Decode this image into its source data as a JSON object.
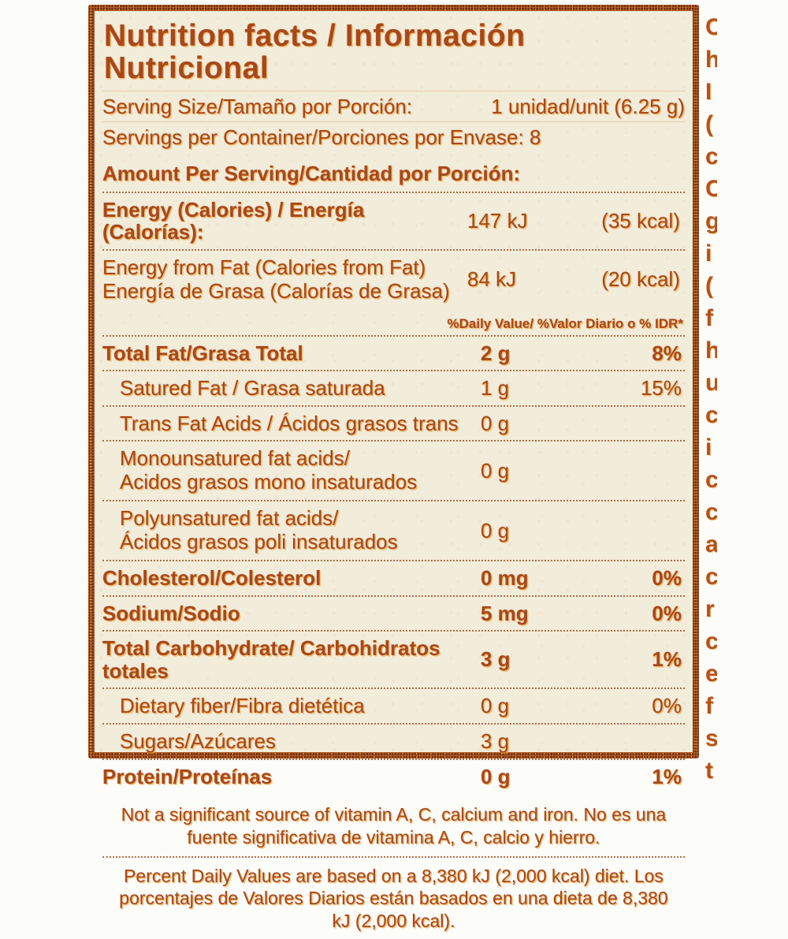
{
  "colors": {
    "ink": "#a8481a",
    "ink_dark": "#8a3510",
    "halo": "#f0a43c",
    "paper": "#f2ecda",
    "page_bg": "#fcfcf9",
    "border": "#7e3a14"
  },
  "label": {
    "title": "Nutrition facts / Información Nutricional",
    "serving": {
      "size_label": "Serving Size/Tamaño por Porción:",
      "size_value": "1 unidad/unit (6.25 g)",
      "per_container": "Servings per Container/Porciones por Envase: 8"
    },
    "amount_per_serving": "Amount Per Serving/Cantidad por Porción:",
    "energy": {
      "label": "Energy (Calories) / Energía (Calorías):",
      "value": "147 kJ",
      "kcal": "(35 kcal)"
    },
    "energy_from_fat": {
      "line1": "Energy from Fat (Calories from Fat)",
      "line2": "Energía de Grasa (Calorías de Grasa)",
      "value": "84 kJ",
      "kcal": "(20 kcal)"
    },
    "daily_value_header": "%Daily Value/ %Valor Diario o % IDR*",
    "nutrients": [
      {
        "name": "Total Fat/Grasa Total",
        "value": "2 g",
        "dv": "8%",
        "style": "bold"
      },
      {
        "name": "Satured Fat / Grasa saturada",
        "value": "1 g",
        "dv": "15%",
        "style": "indent"
      },
      {
        "name": "Trans Fat Acids / Ácidos grasos trans",
        "value": "0 g",
        "dv": "",
        "style": "indent"
      },
      {
        "name": "Monounsatured fat acids/",
        "name2": "Acidos grasos mono insaturados",
        "value": "0 g",
        "dv": "",
        "style": "indent"
      },
      {
        "name": "Polyunsatured fat acids/",
        "name2": "Ácidos grasos poli insaturados",
        "value": "0 g",
        "dv": "",
        "style": "indent"
      },
      {
        "name": "Cholesterol/Colesterol",
        "value": "0 mg",
        "dv": "0%",
        "style": "bold"
      },
      {
        "name": "Sodium/Sodio",
        "value": "5 mg",
        "dv": "0%",
        "style": "bold"
      },
      {
        "name": "Total Carbohydrate/ Carbohidratos totales",
        "value": "3 g",
        "dv": "1%",
        "style": "bold"
      },
      {
        "name": "Dietary fiber/Fibra dietética",
        "value": "0 g",
        "dv": "0%",
        "style": "indent"
      },
      {
        "name": "Sugars/Azúcares",
        "value": "3 g",
        "dv": "",
        "style": "indent"
      },
      {
        "name": "Protein/Proteínas",
        "value": "0 g",
        "dv": "1%",
        "style": "bold"
      }
    ],
    "footnote_vitamins": "Not a significant source of vitamin A, C, calcium and iron. No es una fuente significativa de vitamina A, C, calcio y hierro.",
    "footnote_daily_values": "Percent Daily Values are based on a 8,380 kJ (2,000 kcal) diet. Los porcentajes de Valores Diarios están basados en una dieta de 8,380 kJ (2,000 kcal)."
  },
  "edge_fragments": [
    "C",
    "h",
    "I",
    "(",
    "c",
    "C",
    "g",
    "i",
    "(",
    "f",
    "h",
    "u",
    "c",
    "i",
    "c",
    "c",
    "a",
    "c",
    "r",
    "c",
    "e",
    "f",
    "s",
    "t"
  ]
}
